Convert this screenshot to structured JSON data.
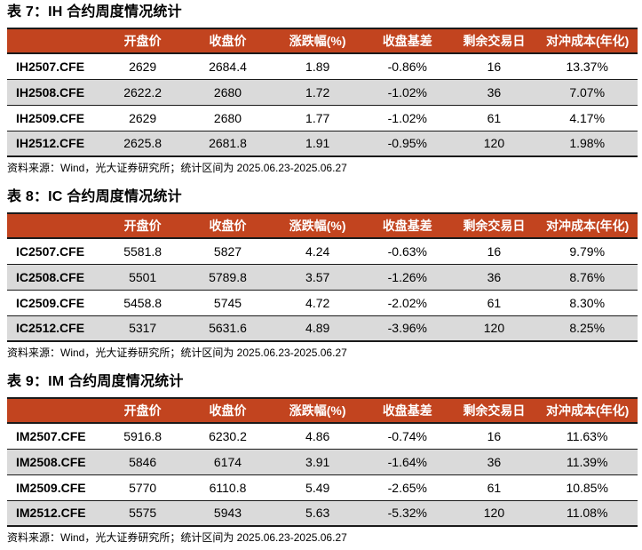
{
  "colors": {
    "header_bg": "#C2441F",
    "header_text": "#FFFFFF",
    "row_alt_bg": "#DADADA",
    "row_bg": "#FFFFFF",
    "border": "#1A1A1A",
    "text": "#000000"
  },
  "columns": [
    "",
    "开盘价",
    "收盘价",
    "涨跌幅(%)",
    "收盘基差",
    "剩余交易日",
    "对冲成本(年化)"
  ],
  "source_note": "资料来源：Wind，光大证券研究所；统计区间为 2025.06.23-2025.06.27",
  "tables": [
    {
      "title": "表 7：IH 合约周度情况统计",
      "rows": [
        [
          "IH2507.CFE",
          "2629",
          "2684.4",
          "1.89",
          "-0.86%",
          "16",
          "13.37%"
        ],
        [
          "IH2508.CFE",
          "2622.2",
          "2680",
          "1.72",
          "-1.02%",
          "36",
          "7.07%"
        ],
        [
          "IH2509.CFE",
          "2629",
          "2680",
          "1.77",
          "-1.02%",
          "61",
          "4.17%"
        ],
        [
          "IH2512.CFE",
          "2625.8",
          "2681.8",
          "1.91",
          "-0.95%",
          "120",
          "1.98%"
        ]
      ]
    },
    {
      "title": "表 8：IC 合约周度情况统计",
      "rows": [
        [
          "IC2507.CFE",
          "5581.8",
          "5827",
          "4.24",
          "-0.63%",
          "16",
          "9.79%"
        ],
        [
          "IC2508.CFE",
          "5501",
          "5789.8",
          "3.57",
          "-1.26%",
          "36",
          "8.76%"
        ],
        [
          "IC2509.CFE",
          "5458.8",
          "5745",
          "4.72",
          "-2.02%",
          "61",
          "8.30%"
        ],
        [
          "IC2512.CFE",
          "5317",
          "5631.6",
          "4.89",
          "-3.96%",
          "120",
          "8.25%"
        ]
      ]
    },
    {
      "title": "表 9：IM 合约周度情况统计",
      "rows": [
        [
          "IM2507.CFE",
          "5916.8",
          "6230.2",
          "4.86",
          "-0.74%",
          "16",
          "11.63%"
        ],
        [
          "IM2508.CFE",
          "5846",
          "6174",
          "3.91",
          "-1.64%",
          "36",
          "11.39%"
        ],
        [
          "IM2509.CFE",
          "5770",
          "6110.8",
          "5.49",
          "-2.65%",
          "61",
          "10.85%"
        ],
        [
          "IM2512.CFE",
          "5575",
          "5943",
          "5.63",
          "-5.32%",
          "120",
          "11.08%"
        ]
      ]
    }
  ]
}
